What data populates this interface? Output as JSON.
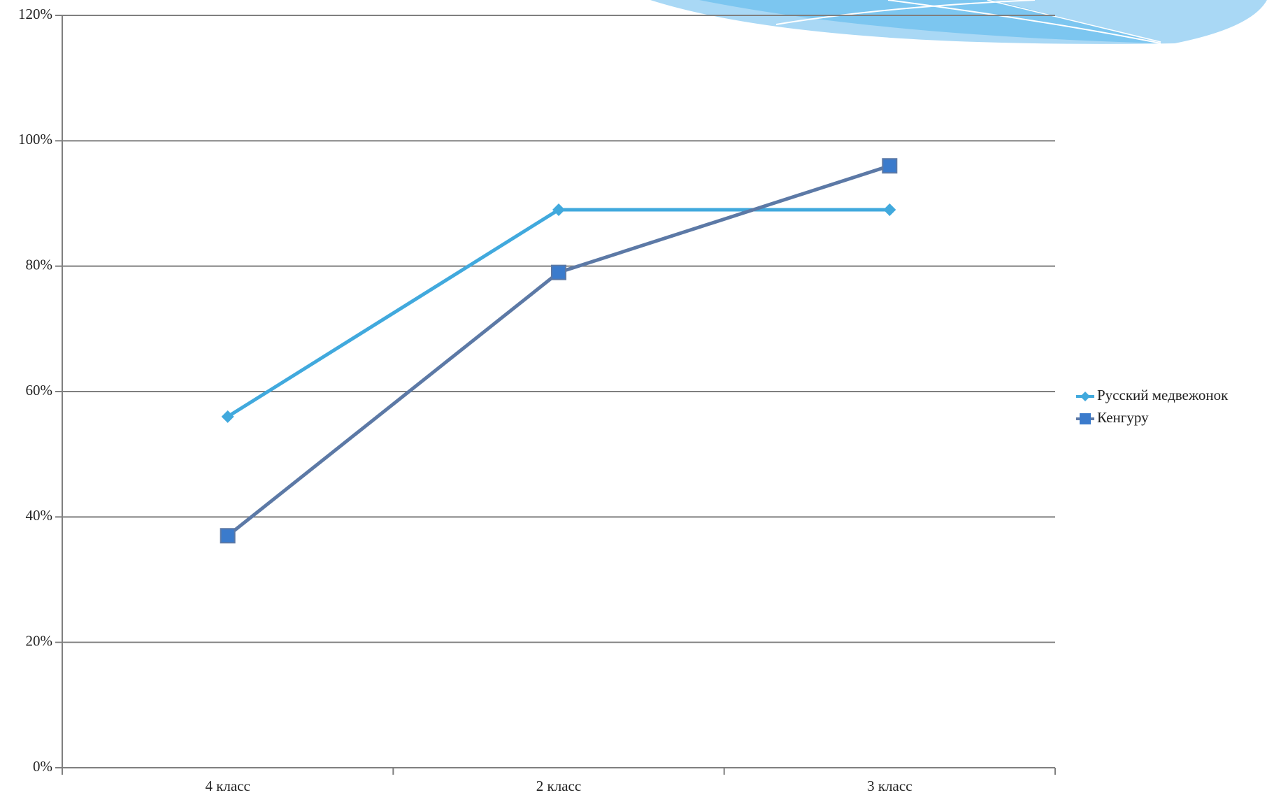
{
  "chart_data": {
    "type": "line",
    "categories": [
      "4 класс",
      "2 класс",
      "3 класс"
    ],
    "series": [
      {
        "name": "Русский медвежонок",
        "color": "#41a9dd",
        "marker": "diamond",
        "values": [
          56,
          89,
          89
        ]
      },
      {
        "name": "Кенгуру",
        "color": "#5c79a6",
        "marker_color": "#3b7bcc",
        "marker": "square",
        "values": [
          37,
          79,
          96
        ]
      }
    ],
    "ylim": [
      0,
      120
    ],
    "yticks": [
      {
        "value": 0,
        "label": "0%"
      },
      {
        "value": 20,
        "label": "20%"
      },
      {
        "value": 40,
        "label": "40%"
      },
      {
        "value": 60,
        "label": "60%"
      },
      {
        "value": 80,
        "label": "80%"
      },
      {
        "value": 100,
        "label": "100%"
      },
      {
        "value": 120,
        "label": "120%"
      }
    ],
    "grid": true,
    "legend": "right"
  }
}
